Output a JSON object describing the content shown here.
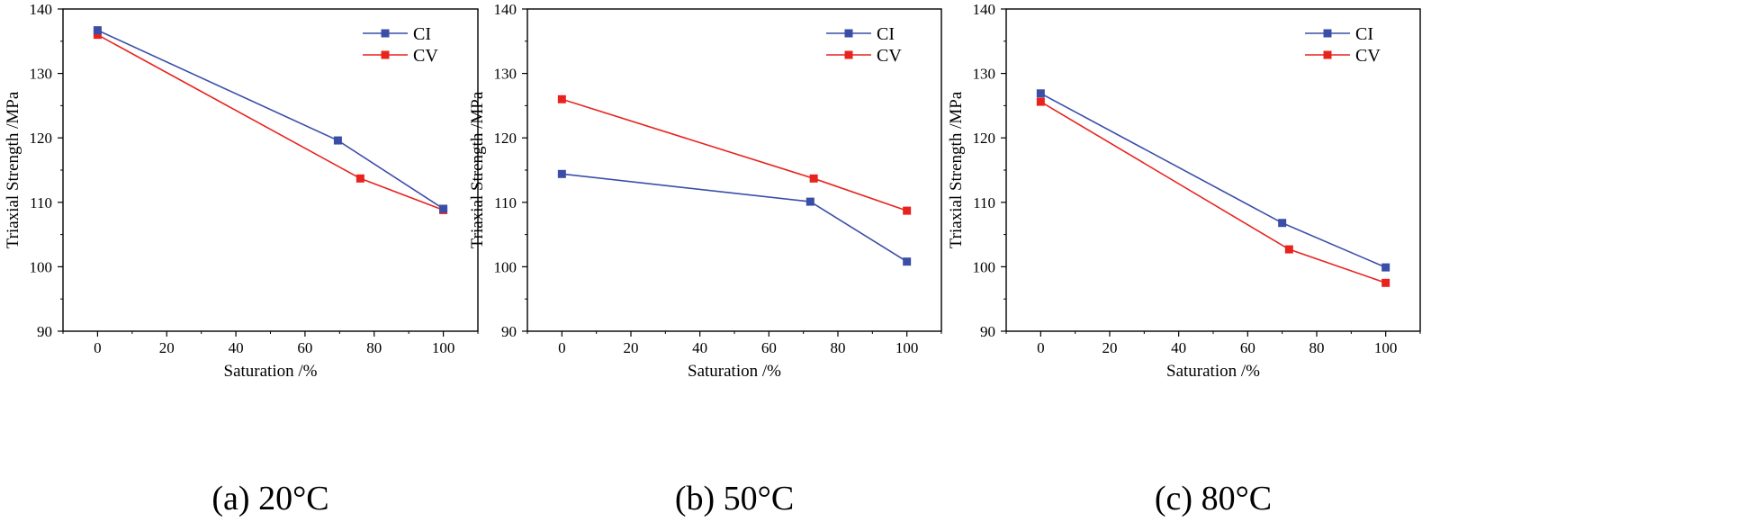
{
  "colors": {
    "CI": "#3a4ea8",
    "CV": "#e8231e"
  },
  "chart_data": [
    {
      "type": "line",
      "caption": "(a) 20°C",
      "xlabel": "Saturation /%",
      "ylabel": "Triaxial Strength /MPa",
      "xlim": [
        -10,
        110
      ],
      "ylim": [
        90,
        140
      ],
      "xticks": [
        0,
        20,
        40,
        60,
        80,
        100
      ],
      "yticks": [
        90,
        100,
        110,
        120,
        130,
        140
      ],
      "legend": "top-right",
      "series": [
        {
          "name": "CI",
          "x": [
            0,
            69.5,
            100
          ],
          "y": [
            136.7,
            119.6,
            109.0
          ]
        },
        {
          "name": "CV",
          "x": [
            0,
            76,
            100
          ],
          "y": [
            136.0,
            113.7,
            108.8
          ]
        }
      ]
    },
    {
      "type": "line",
      "caption": "(b) 50°C",
      "xlabel": "Saturation /%",
      "ylabel": "Triaxial Strength /MPa",
      "xlim": [
        -10,
        110
      ],
      "ylim": [
        90,
        140
      ],
      "xticks": [
        0,
        20,
        40,
        60,
        80,
        100
      ],
      "yticks": [
        90,
        100,
        110,
        120,
        130,
        140
      ],
      "legend": "top-right",
      "series": [
        {
          "name": "CI",
          "x": [
            0,
            72,
            100
          ],
          "y": [
            114.4,
            110.1,
            100.8
          ]
        },
        {
          "name": "CV",
          "x": [
            0,
            73,
            100
          ],
          "y": [
            126.0,
            113.7,
            108.7
          ]
        }
      ]
    },
    {
      "type": "line",
      "caption": "(c) 80°C",
      "xlabel": "Saturation /%",
      "ylabel": "Triaxial Strength /MPa",
      "xlim": [
        -10,
        110
      ],
      "ylim": [
        90,
        140
      ],
      "xticks": [
        0,
        20,
        40,
        60,
        80,
        100
      ],
      "yticks": [
        90,
        100,
        110,
        120,
        130,
        140
      ],
      "legend": "top-right",
      "series": [
        {
          "name": "CI",
          "x": [
            0,
            70,
            100
          ],
          "y": [
            126.9,
            106.8,
            99.9
          ]
        },
        {
          "name": "CV",
          "x": [
            0,
            72,
            100
          ],
          "y": [
            125.6,
            102.7,
            97.5
          ]
        }
      ]
    }
  ]
}
